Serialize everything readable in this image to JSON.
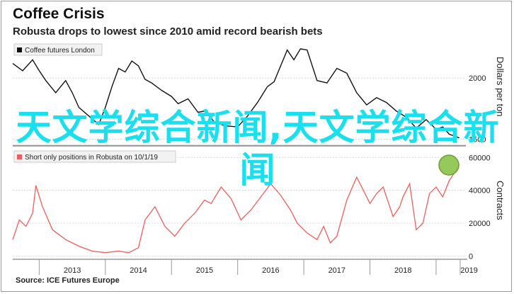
{
  "header": {
    "title": "Coffee Crisis",
    "subtitle": "Robusta drops to lowest since 2010 amid record bearish bets"
  },
  "footer": {
    "source": "Source: ICE Futures Europe"
  },
  "overlay_text": "天文学综合新闻,天文学综合新闻",
  "colors": {
    "price_line": "#111111",
    "positions_line": "#e8605e",
    "highlight_fill": "#8bc34a",
    "overlay": "#19e0ee"
  },
  "chart_data": [
    {
      "type": "line",
      "title": "",
      "legend": "Coffee futures London",
      "legend_position": "top-left",
      "ylabel": "Dollars per ton",
      "yticks": [
        1500,
        2000
      ],
      "ylim": [
        1450,
        2280
      ],
      "grid": true,
      "series": [
        {
          "name": "Coffee futures London",
          "x": [
            2012.6,
            2012.75,
            2012.9,
            2013.0,
            2013.1,
            2013.25,
            2013.4,
            2013.5,
            2013.6,
            2013.75,
            2013.9,
            2014.0,
            2014.1,
            2014.2,
            2014.3,
            2014.4,
            2014.5,
            2014.6,
            2014.7,
            2014.85,
            2015.0,
            2015.1,
            2015.25,
            2015.4,
            2015.5,
            2015.65,
            2015.8,
            2016.0,
            2016.15,
            2016.3,
            2016.45,
            2016.55,
            2016.65,
            2016.75,
            2016.85,
            2016.95,
            2017.05,
            2017.2,
            2017.35,
            2017.5,
            2017.65,
            2017.8,
            2017.95,
            2018.1,
            2018.25,
            2018.4,
            2018.55,
            2018.7,
            2018.85,
            2019.0,
            2019.1,
            2019.2,
            2019.3,
            2019.35
          ],
          "values": [
            2120,
            2060,
            2150,
            2060,
            1980,
            1880,
            1980,
            1880,
            1760,
            1690,
            1620,
            1760,
            1930,
            2080,
            2050,
            2140,
            2100,
            1990,
            1960,
            1900,
            1850,
            1790,
            1830,
            1720,
            1730,
            1640,
            1610,
            1600,
            1690,
            1800,
            1930,
            1970,
            2100,
            2230,
            2150,
            2240,
            2230,
            1980,
            1960,
            2080,
            2040,
            1880,
            1780,
            1840,
            1800,
            1730,
            1680,
            1590,
            1660,
            1580,
            1600,
            1540,
            1520,
            1510
          ]
        }
      ]
    },
    {
      "type": "line",
      "title": "",
      "legend": "Short only positions in Robusta on 10/1/19",
      "legend_position": "top-left",
      "ylabel": "Contracts",
      "yticks": [
        0,
        20000,
        40000,
        60000
      ],
      "ylim": [
        -2000,
        64000
      ],
      "grid": true,
      "xticks": [
        "2013",
        "2014",
        "2015",
        "2016",
        "2017",
        "2018",
        "2019"
      ],
      "series": [
        {
          "name": "Short only positions in Robusta on 10/1/19",
          "x": [
            2012.6,
            2012.7,
            2012.8,
            2012.9,
            2012.95,
            2013.05,
            2013.2,
            2013.4,
            2013.6,
            2013.8,
            2014.0,
            2014.2,
            2014.35,
            2014.5,
            2014.6,
            2014.75,
            2014.9,
            2015.05,
            2015.2,
            2015.35,
            2015.5,
            2015.6,
            2015.75,
            2015.9,
            2016.05,
            2016.2,
            2016.35,
            2016.5,
            2016.65,
            2016.8,
            2016.9,
            2017.05,
            2017.2,
            2017.3,
            2017.4,
            2017.5,
            2017.65,
            2017.8,
            2017.9,
            2018.0,
            2018.1,
            2018.2,
            2018.35,
            2018.45,
            2018.5,
            2018.6,
            2018.7,
            2018.8,
            2018.9,
            2019.0,
            2019.1,
            2019.2,
            2019.3,
            2019.35
          ],
          "values": [
            10000,
            22000,
            18000,
            26000,
            43000,
            30000,
            16000,
            10000,
            6000,
            3000,
            2000,
            3000,
            2000,
            5000,
            22000,
            30000,
            18000,
            12000,
            20000,
            26000,
            34000,
            32000,
            42000,
            35000,
            22000,
            28000,
            36000,
            44000,
            37000,
            28000,
            20000,
            14000,
            10000,
            18000,
            8000,
            12000,
            34000,
            48000,
            40000,
            32000,
            38000,
            42000,
            24000,
            30000,
            36000,
            44000,
            16000,
            20000,
            38000,
            42000,
            36000,
            46000,
            52000,
            56000
          ]
        }
      ],
      "annotation": "highlight circle on latest value"
    }
  ]
}
